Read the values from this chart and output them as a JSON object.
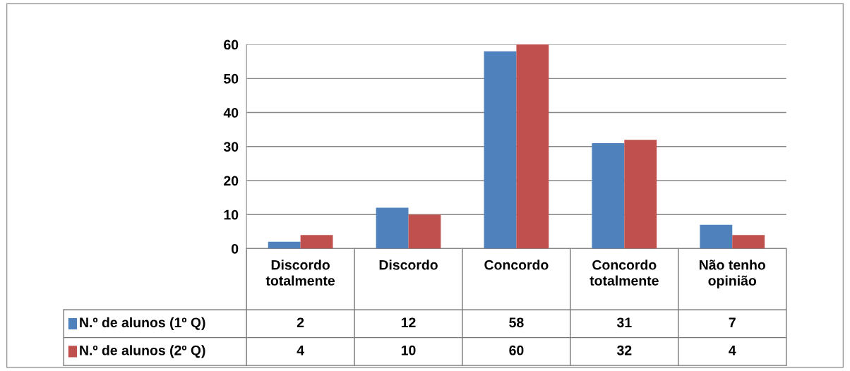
{
  "chart_data": {
    "type": "bar",
    "categories": [
      "Discordo totalmente",
      "Discordo",
      "Concordo",
      "Concordo totalmente",
      "Não tenho opinião"
    ],
    "series": [
      {
        "name": "N.º de alunos (1º Q)",
        "color": "#4f81bd",
        "values": [
          2,
          12,
          58,
          31,
          7
        ]
      },
      {
        "name": "N.º de alunos (2º Q)",
        "color": "#c0504d",
        "values": [
          4,
          10,
          60,
          32,
          4
        ]
      }
    ],
    "ylim": [
      0,
      60
    ],
    "yticks": [
      0,
      10,
      20,
      30,
      40,
      50,
      60
    ],
    "grid": "y",
    "legend": "bottom",
    "data_labels": true
  }
}
